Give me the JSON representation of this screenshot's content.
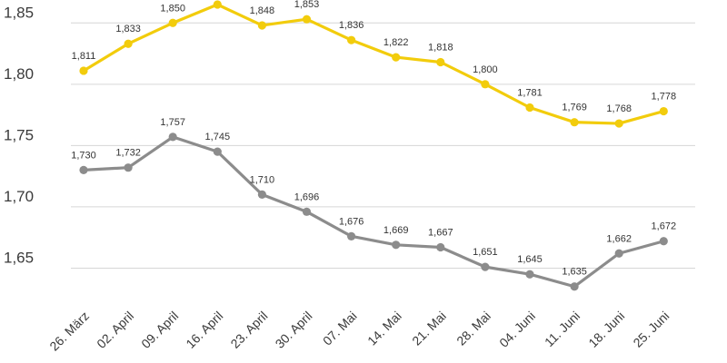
{
  "chart_data": {
    "type": "line",
    "categories": [
      "26. März",
      "02. April",
      "09. April",
      "16. April",
      "23. April",
      "30. April",
      "07. Mai",
      "14. Mai",
      "21. Mai",
      "28. Mai",
      "04. Juni",
      "11. Juni",
      "18. Juni",
      "25. Juni"
    ],
    "ylim": [
      1.62,
      1.865
    ],
    "yticks": [
      {
        "value": 1.85,
        "label": "1,85"
      },
      {
        "value": 1.8,
        "label": "1,80"
      },
      {
        "value": 1.75,
        "label": "1,75"
      },
      {
        "value": 1.7,
        "label": "1,70"
      },
      {
        "value": 1.65,
        "label": "1,65"
      }
    ],
    "grid": true,
    "series": [
      {
        "name": "upper",
        "color": "#f2cc0c",
        "values": [
          1.811,
          1.833,
          1.85,
          1.865,
          1.848,
          1.853,
          1.836,
          1.822,
          1.818,
          1.8,
          1.781,
          1.769,
          1.768,
          1.778
        ],
        "labels": [
          "1,811",
          "1,833",
          "1,850",
          "",
          "1,848",
          "1,853",
          "1,836",
          "1,822",
          "1,818",
          "1,800",
          "1,781",
          "1,769",
          "1,768",
          "1,778"
        ]
      },
      {
        "name": "lower",
        "color": "#8c8c8c",
        "values": [
          1.73,
          1.732,
          1.757,
          1.745,
          1.71,
          1.696,
          1.676,
          1.669,
          1.667,
          1.651,
          1.645,
          1.635,
          1.662,
          1.672
        ],
        "labels": [
          "1,730",
          "1,732",
          "1,757",
          "1,745",
          "1,710",
          "1,696",
          "1,676",
          "1,669",
          "1,667",
          "1,651",
          "1,645",
          "1,635",
          "1,662",
          "1,672"
        ]
      }
    ]
  }
}
